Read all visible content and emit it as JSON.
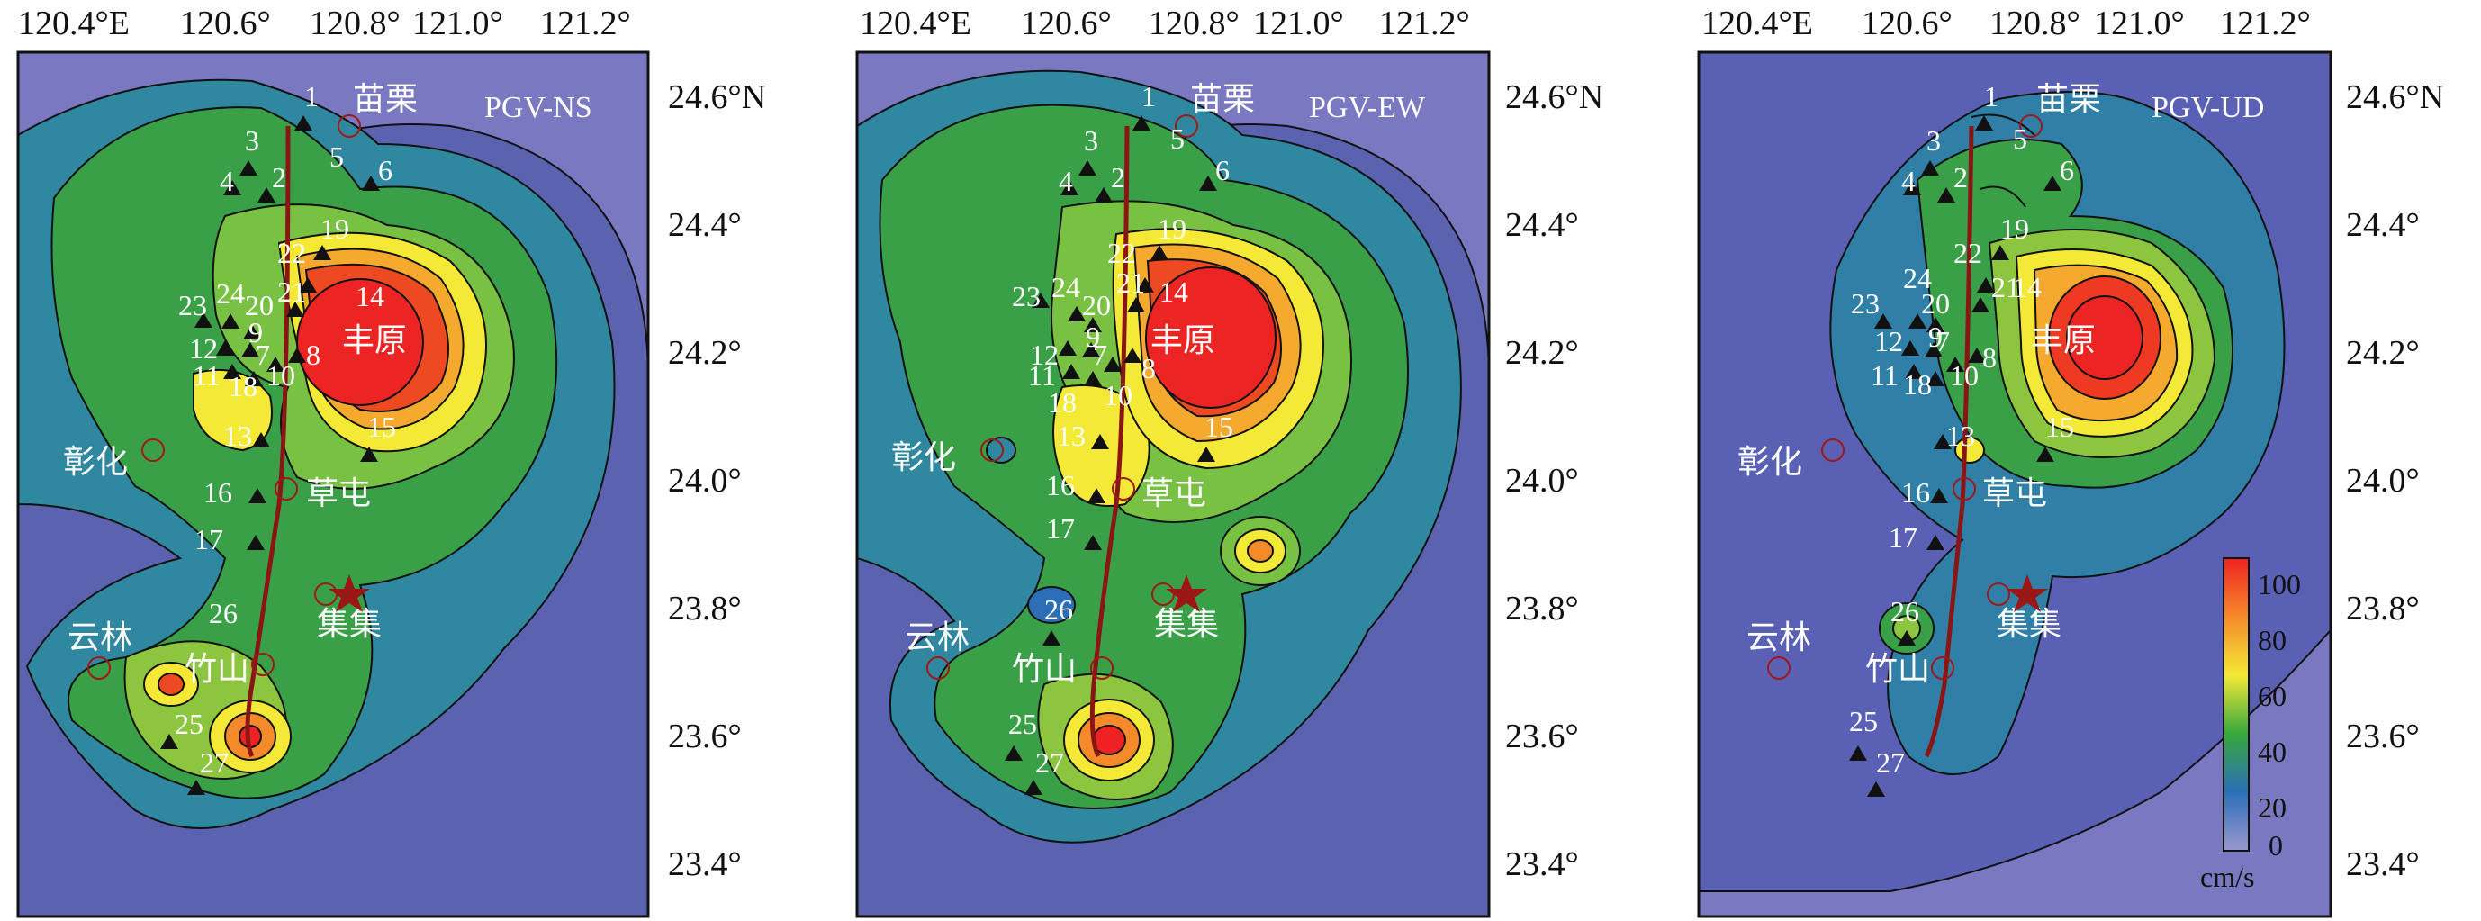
{
  "figure": {
    "top_axis_labels": [
      "120.4°E",
      "120.6°",
      "120.8°",
      "121.0°",
      "121.2°"
    ],
    "right_axis_labels": [
      "24.6°N",
      "24.4°",
      "24.2°",
      "24.0°",
      "23.8°",
      "23.6°",
      "23.4°"
    ],
    "panels": [
      {
        "id": "ns",
        "title": "PGV-NS"
      },
      {
        "id": "ew",
        "title": "PGV-EW"
      },
      {
        "id": "ud",
        "title": "PGV-UD"
      }
    ],
    "colorbar": {
      "ticks": [
        "100",
        "80",
        "60",
        "40",
        "20",
        "0"
      ],
      "unit": "cm/s",
      "colors": [
        "#ee2222",
        "#f58a2a",
        "#f3e936",
        "#36a83c",
        "#2c6fb7",
        "#9b97cf"
      ]
    }
  },
  "cities": [
    {
      "name": "苗栗",
      "lon": 120.82,
      "lat": 24.56
    },
    {
      "name": "彰化",
      "lon": 120.54,
      "lat": 24.07
    },
    {
      "name": "草屯",
      "lon": 120.68,
      "lat": 23.98
    },
    {
      "name": "丰原",
      "lon": 120.72,
      "lat": 24.25
    },
    {
      "name": "集集",
      "lon": 120.78,
      "lat": 23.83
    },
    {
      "name": "云林",
      "lon": 120.52,
      "lat": 23.71
    },
    {
      "name": "竹山",
      "lon": 120.69,
      "lat": 23.76
    }
  ],
  "epicenter": {
    "name": "epicenter-star",
    "lon": 120.82,
    "lat": 23.85
  },
  "stations": {
    "ns": [
      "1",
      "3",
      "4",
      "2",
      "5",
      "6",
      "19",
      "22",
      "21",
      "14",
      "23",
      "24",
      "20",
      "9",
      "12",
      "7",
      "8",
      "11",
      "18",
      "10",
      "13",
      "15",
      "16",
      "17",
      "26",
      "25",
      "27"
    ],
    "ew": [
      "1",
      "5",
      "3",
      "4",
      "2",
      "6",
      "19",
      "22",
      "21",
      "14",
      "23",
      "24",
      "20",
      "9",
      "12",
      "7",
      "8",
      "11",
      "18",
      "10",
      "13",
      "15",
      "16",
      "17",
      "26",
      "25",
      "27"
    ],
    "ud": [
      "1",
      "5",
      "3",
      "4",
      "2",
      "6",
      "19",
      "22",
      "21",
      "14",
      "23",
      "24",
      "20",
      "9",
      "12",
      "7",
      "8",
      "11",
      "18",
      "10",
      "13",
      "15",
      "16",
      "17",
      "26",
      "25",
      "27"
    ]
  }
}
